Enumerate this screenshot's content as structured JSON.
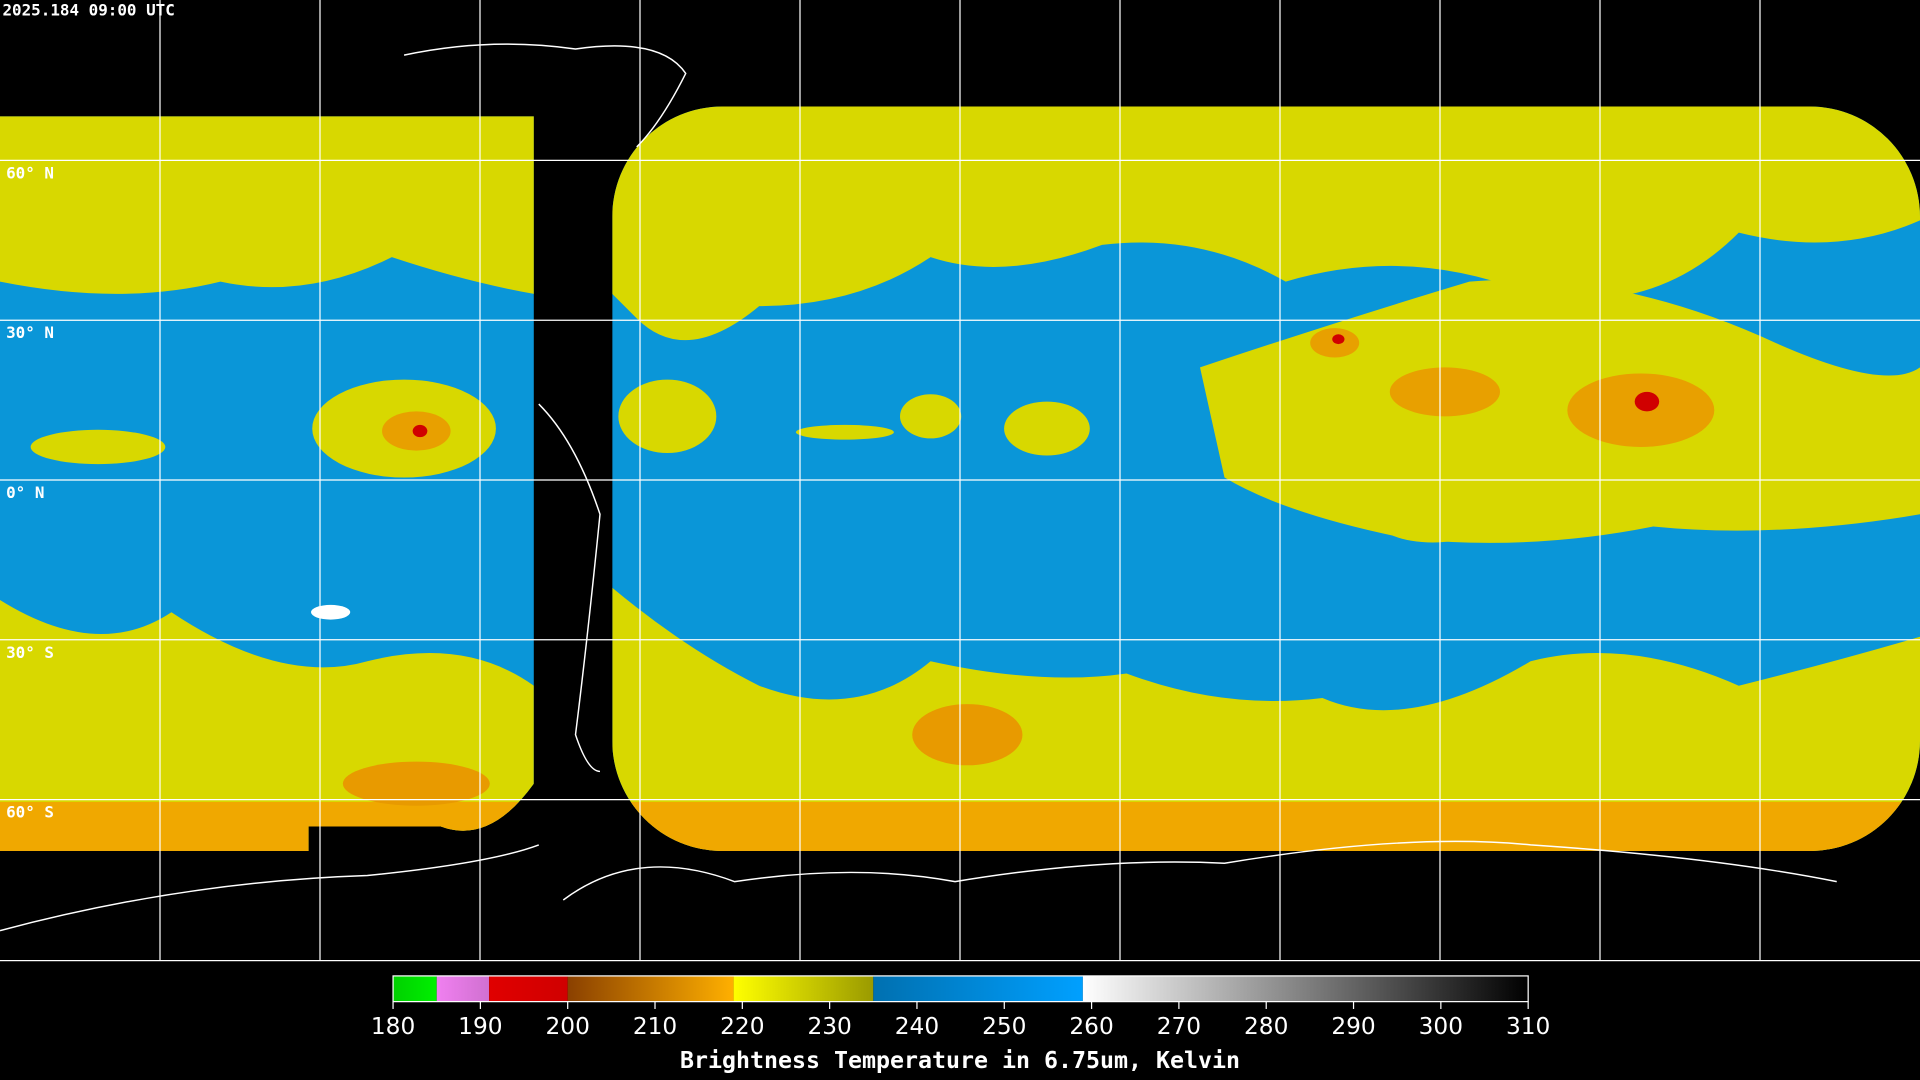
{
  "header": {
    "title": "2025.184 09:00 UTC"
  },
  "map": {
    "lat_grid": [
      {
        "value": 60,
        "label": "60° N"
      },
      {
        "value": 30,
        "label": "30° N"
      },
      {
        "value": 0,
        "label": "0° N"
      },
      {
        "value": -30,
        "label": "30° S"
      },
      {
        "value": -60,
        "label": "60° S"
      }
    ]
  },
  "colorbar": {
    "label": "Brightness Temperature in 6.75um, Kelvin",
    "xlim": [
      180,
      310
    ],
    "xticks": [
      180,
      190,
      200,
      210,
      220,
      230,
      240,
      250,
      260,
      270,
      280,
      290,
      300,
      310
    ],
    "segments": [
      {
        "from": 180,
        "to": 185,
        "colors": [
          "#00d000",
          "#00f000"
        ]
      },
      {
        "from": 185,
        "to": 191,
        "colors": [
          "#f080f0",
          "#d070d0"
        ]
      },
      {
        "from": 191,
        "to": 200,
        "colors": [
          "#e00000",
          "#d00000"
        ]
      },
      {
        "from": 200,
        "to": 219,
        "colors": [
          "#8a4000",
          "#ffb000"
        ]
      },
      {
        "from": 219,
        "to": 235,
        "colors": [
          "#ffff00",
          "#9a9a00"
        ]
      },
      {
        "from": 235,
        "to": 259,
        "colors": [
          "#0070b0",
          "#00a0ff"
        ]
      },
      {
        "from": 259,
        "to": 310,
        "colors": [
          "#ffffff",
          "#000000"
        ]
      }
    ]
  }
}
